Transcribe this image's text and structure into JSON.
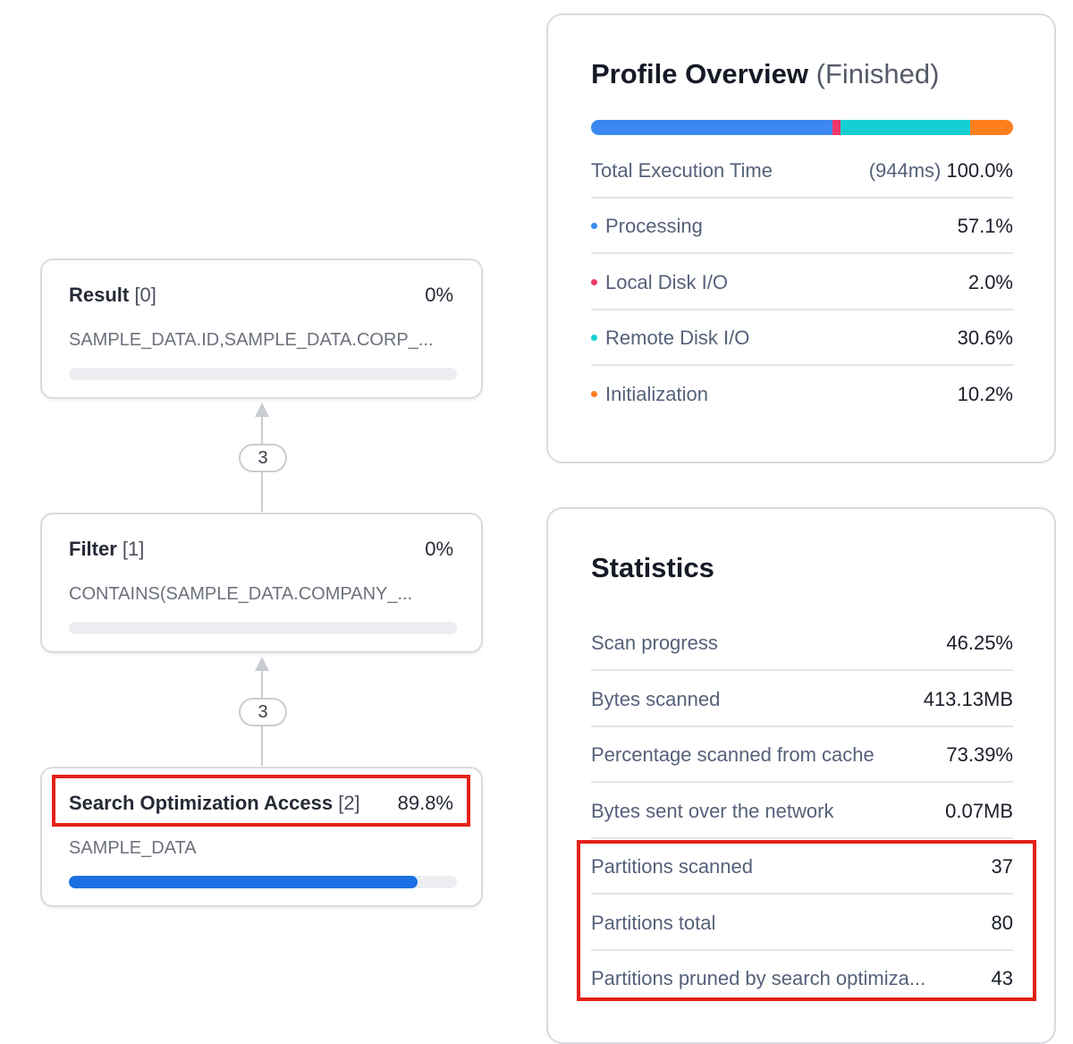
{
  "operators": [
    {
      "name": "Result",
      "index": "[0]",
      "percent": "0%",
      "description": "SAMPLE_DATA.ID,SAMPLE_DATA.CORP_...",
      "progress": 0
    },
    {
      "name": "Filter",
      "index": "[1]",
      "percent": "0%",
      "description": "CONTAINS(SAMPLE_DATA.COMPANY_...",
      "progress": 0
    },
    {
      "name": "Search Optimization Access",
      "index": "[2]",
      "percent": "89.8%",
      "description": "SAMPLE_DATA",
      "progress": 0.898
    }
  ],
  "edges": [
    {
      "rows": "3"
    },
    {
      "rows": "3"
    }
  ],
  "profile": {
    "title": "Profile Overview",
    "status": "(Finished)",
    "total_label": "Total Execution Time",
    "total_ms": "(944ms)",
    "total_pct": "100.0%",
    "breakdown": [
      {
        "label": "Processing",
        "value": "57.1%",
        "color": "#3b88f0",
        "fraction": 0.571
      },
      {
        "label": "Local Disk I/O",
        "value": "2.0%",
        "color": "#f0386b",
        "fraction": 0.02
      },
      {
        "label": "Remote Disk I/O",
        "value": "30.6%",
        "color": "#16cfd2",
        "fraction": 0.306
      },
      {
        "label": "Initialization",
        "value": "10.2%",
        "color": "#ff7f1f",
        "fraction": 0.102
      }
    ]
  },
  "statistics": {
    "title": "Statistics",
    "rows": [
      {
        "label": "Scan progress",
        "value": "46.25%"
      },
      {
        "label": "Bytes scanned",
        "value": "413.13MB"
      },
      {
        "label": "Percentage scanned from cache",
        "value": "73.39%"
      },
      {
        "label": "Bytes sent over the network",
        "value": "0.07MB"
      },
      {
        "label": "Partitions scanned",
        "value": "37"
      },
      {
        "label": "Partitions total",
        "value": "80"
      },
      {
        "label": "Partitions pruned by search optimiza...",
        "value": "43"
      }
    ]
  },
  "colors": {
    "highlight": "#e42019",
    "accent_blue": "#1a6fe3"
  }
}
